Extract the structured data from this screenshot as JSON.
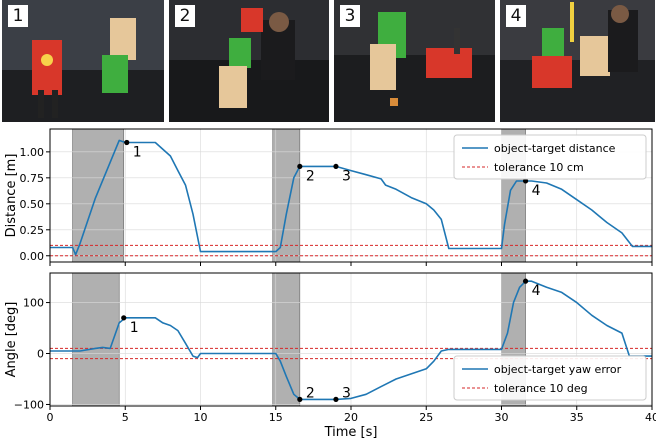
{
  "panels": [
    {
      "label": "1",
      "tone": "#3b3f46"
    },
    {
      "label": "2",
      "tone": "#2c2d31"
    },
    {
      "label": "3",
      "tone": "#303134"
    },
    {
      "label": "4",
      "tone": "#3a3b40"
    }
  ],
  "colors": {
    "series": "#1f77b4",
    "tolerance": "#d62728",
    "shade": "#b0b0b0",
    "grid": "#d9d9d9",
    "robot": "#d8372a",
    "box_green": "#3fae3f",
    "box_wood": "#e6c79a"
  },
  "chart_data": [
    {
      "type": "line",
      "ylabel": "Distance [m]",
      "xlim": [
        0,
        40
      ],
      "ylim": [
        -0.06,
        1.22
      ],
      "yticks": [
        0.0,
        0.25,
        0.5,
        0.75,
        1.0
      ],
      "ytick_labels": [
        "0.00",
        "0.25",
        "0.50",
        "0.75",
        "1.00"
      ],
      "legend_position": "top-right",
      "shaded_intervals": [
        [
          1.5,
          4.9
        ],
        [
          14.8,
          16.6
        ],
        [
          30.0,
          31.6
        ]
      ],
      "series": [
        {
          "name": "object-target distance",
          "x": [
            0,
            1.5,
            1.7,
            2,
            3,
            4.6,
            5,
            6,
            7,
            8,
            8.5,
            9,
            9.5,
            10,
            12,
            13,
            14,
            15,
            15.3,
            15.7,
            16.2,
            16.6,
            17,
            18,
            19,
            20,
            21,
            22,
            22.3,
            23,
            24,
            25,
            25.5,
            26,
            26.5,
            28,
            29,
            30,
            30.2,
            30.6,
            31,
            31.6,
            32,
            33,
            34,
            35,
            36,
            36.5,
            37,
            38,
            38.7,
            39,
            40
          ],
          "y": [
            0.08,
            0.08,
            0.01,
            0.12,
            0.55,
            1.11,
            1.09,
            1.09,
            1.09,
            0.96,
            0.82,
            0.68,
            0.4,
            0.04,
            0.04,
            0.04,
            0.04,
            0.04,
            0.08,
            0.4,
            0.75,
            0.86,
            0.86,
            0.86,
            0.86,
            0.82,
            0.78,
            0.74,
            0.68,
            0.64,
            0.56,
            0.5,
            0.44,
            0.35,
            0.07,
            0.07,
            0.07,
            0.07,
            0.3,
            0.63,
            0.72,
            0.72,
            0.72,
            0.7,
            0.64,
            0.54,
            0.44,
            0.38,
            0.32,
            0.22,
            0.09,
            0.09,
            0.09
          ]
        },
        {
          "name": "tolerance 10 cm",
          "style": "dashed",
          "levels": [
            0.1,
            0.0
          ]
        }
      ],
      "annotations": [
        {
          "label": "1",
          "x": 5.1,
          "y": 1.09
        },
        {
          "label": "2",
          "x": 16.6,
          "y": 0.86
        },
        {
          "label": "3",
          "x": 19.0,
          "y": 0.86
        },
        {
          "label": "4",
          "x": 31.6,
          "y": 0.72
        }
      ]
    },
    {
      "type": "line",
      "xlabel": "Time [s]",
      "ylabel": "Angle [deg]",
      "xlim": [
        0,
        40
      ],
      "ylim": [
        -103,
        158
      ],
      "yticks": [
        -100,
        0,
        100
      ],
      "ytick_labels": [
        "−100",
        "0",
        "100"
      ],
      "xticks": [
        0,
        5,
        10,
        15,
        20,
        25,
        30,
        35,
        40
      ],
      "xtick_labels": [
        "0",
        "5",
        "10",
        "15",
        "20",
        "25",
        "30",
        "35",
        "40"
      ],
      "legend_position": "bottom-right",
      "shaded_intervals": [
        [
          1.5,
          4.6
        ],
        [
          14.8,
          16.6
        ],
        [
          30.0,
          31.6
        ]
      ],
      "series": [
        {
          "name": "object-target yaw error",
          "x": [
            0,
            1.5,
            2,
            3,
            3.5,
            4,
            4.6,
            5,
            6,
            7,
            7.5,
            8,
            8.5,
            9,
            9.5,
            9.8,
            10,
            11,
            12,
            13,
            14,
            15,
            15.3,
            15.7,
            16.2,
            16.6,
            17,
            18,
            19,
            20,
            21,
            22,
            23,
            24,
            25,
            25.5,
            26,
            26.5,
            28,
            29,
            30,
            30.4,
            30.8,
            31.2,
            31.6,
            32,
            33,
            34,
            35,
            36,
            37,
            38,
            38.5,
            39,
            40
          ],
          "y": [
            5,
            5,
            5,
            10,
            12,
            10,
            60,
            70,
            70,
            70,
            60,
            55,
            45,
            20,
            -5,
            -8,
            0,
            0,
            0,
            0,
            0,
            0,
            -15,
            -45,
            -80,
            -90,
            -90,
            -90,
            -90,
            -88,
            -80,
            -65,
            -50,
            -40,
            -30,
            -15,
            5,
            8,
            8,
            8,
            8,
            40,
            100,
            130,
            142,
            142,
            130,
            120,
            100,
            75,
            55,
            40,
            -5,
            -5,
            -5
          ]
        },
        {
          "name": "tolerance 10 deg",
          "style": "dashed",
          "levels": [
            10,
            -10
          ]
        }
      ],
      "annotations": [
        {
          "label": "1",
          "x": 4.9,
          "y": 70
        },
        {
          "label": "2",
          "x": 16.6,
          "y": -90
        },
        {
          "label": "3",
          "x": 19.0,
          "y": -90
        },
        {
          "label": "4",
          "x": 31.6,
          "y": 142
        }
      ]
    }
  ]
}
